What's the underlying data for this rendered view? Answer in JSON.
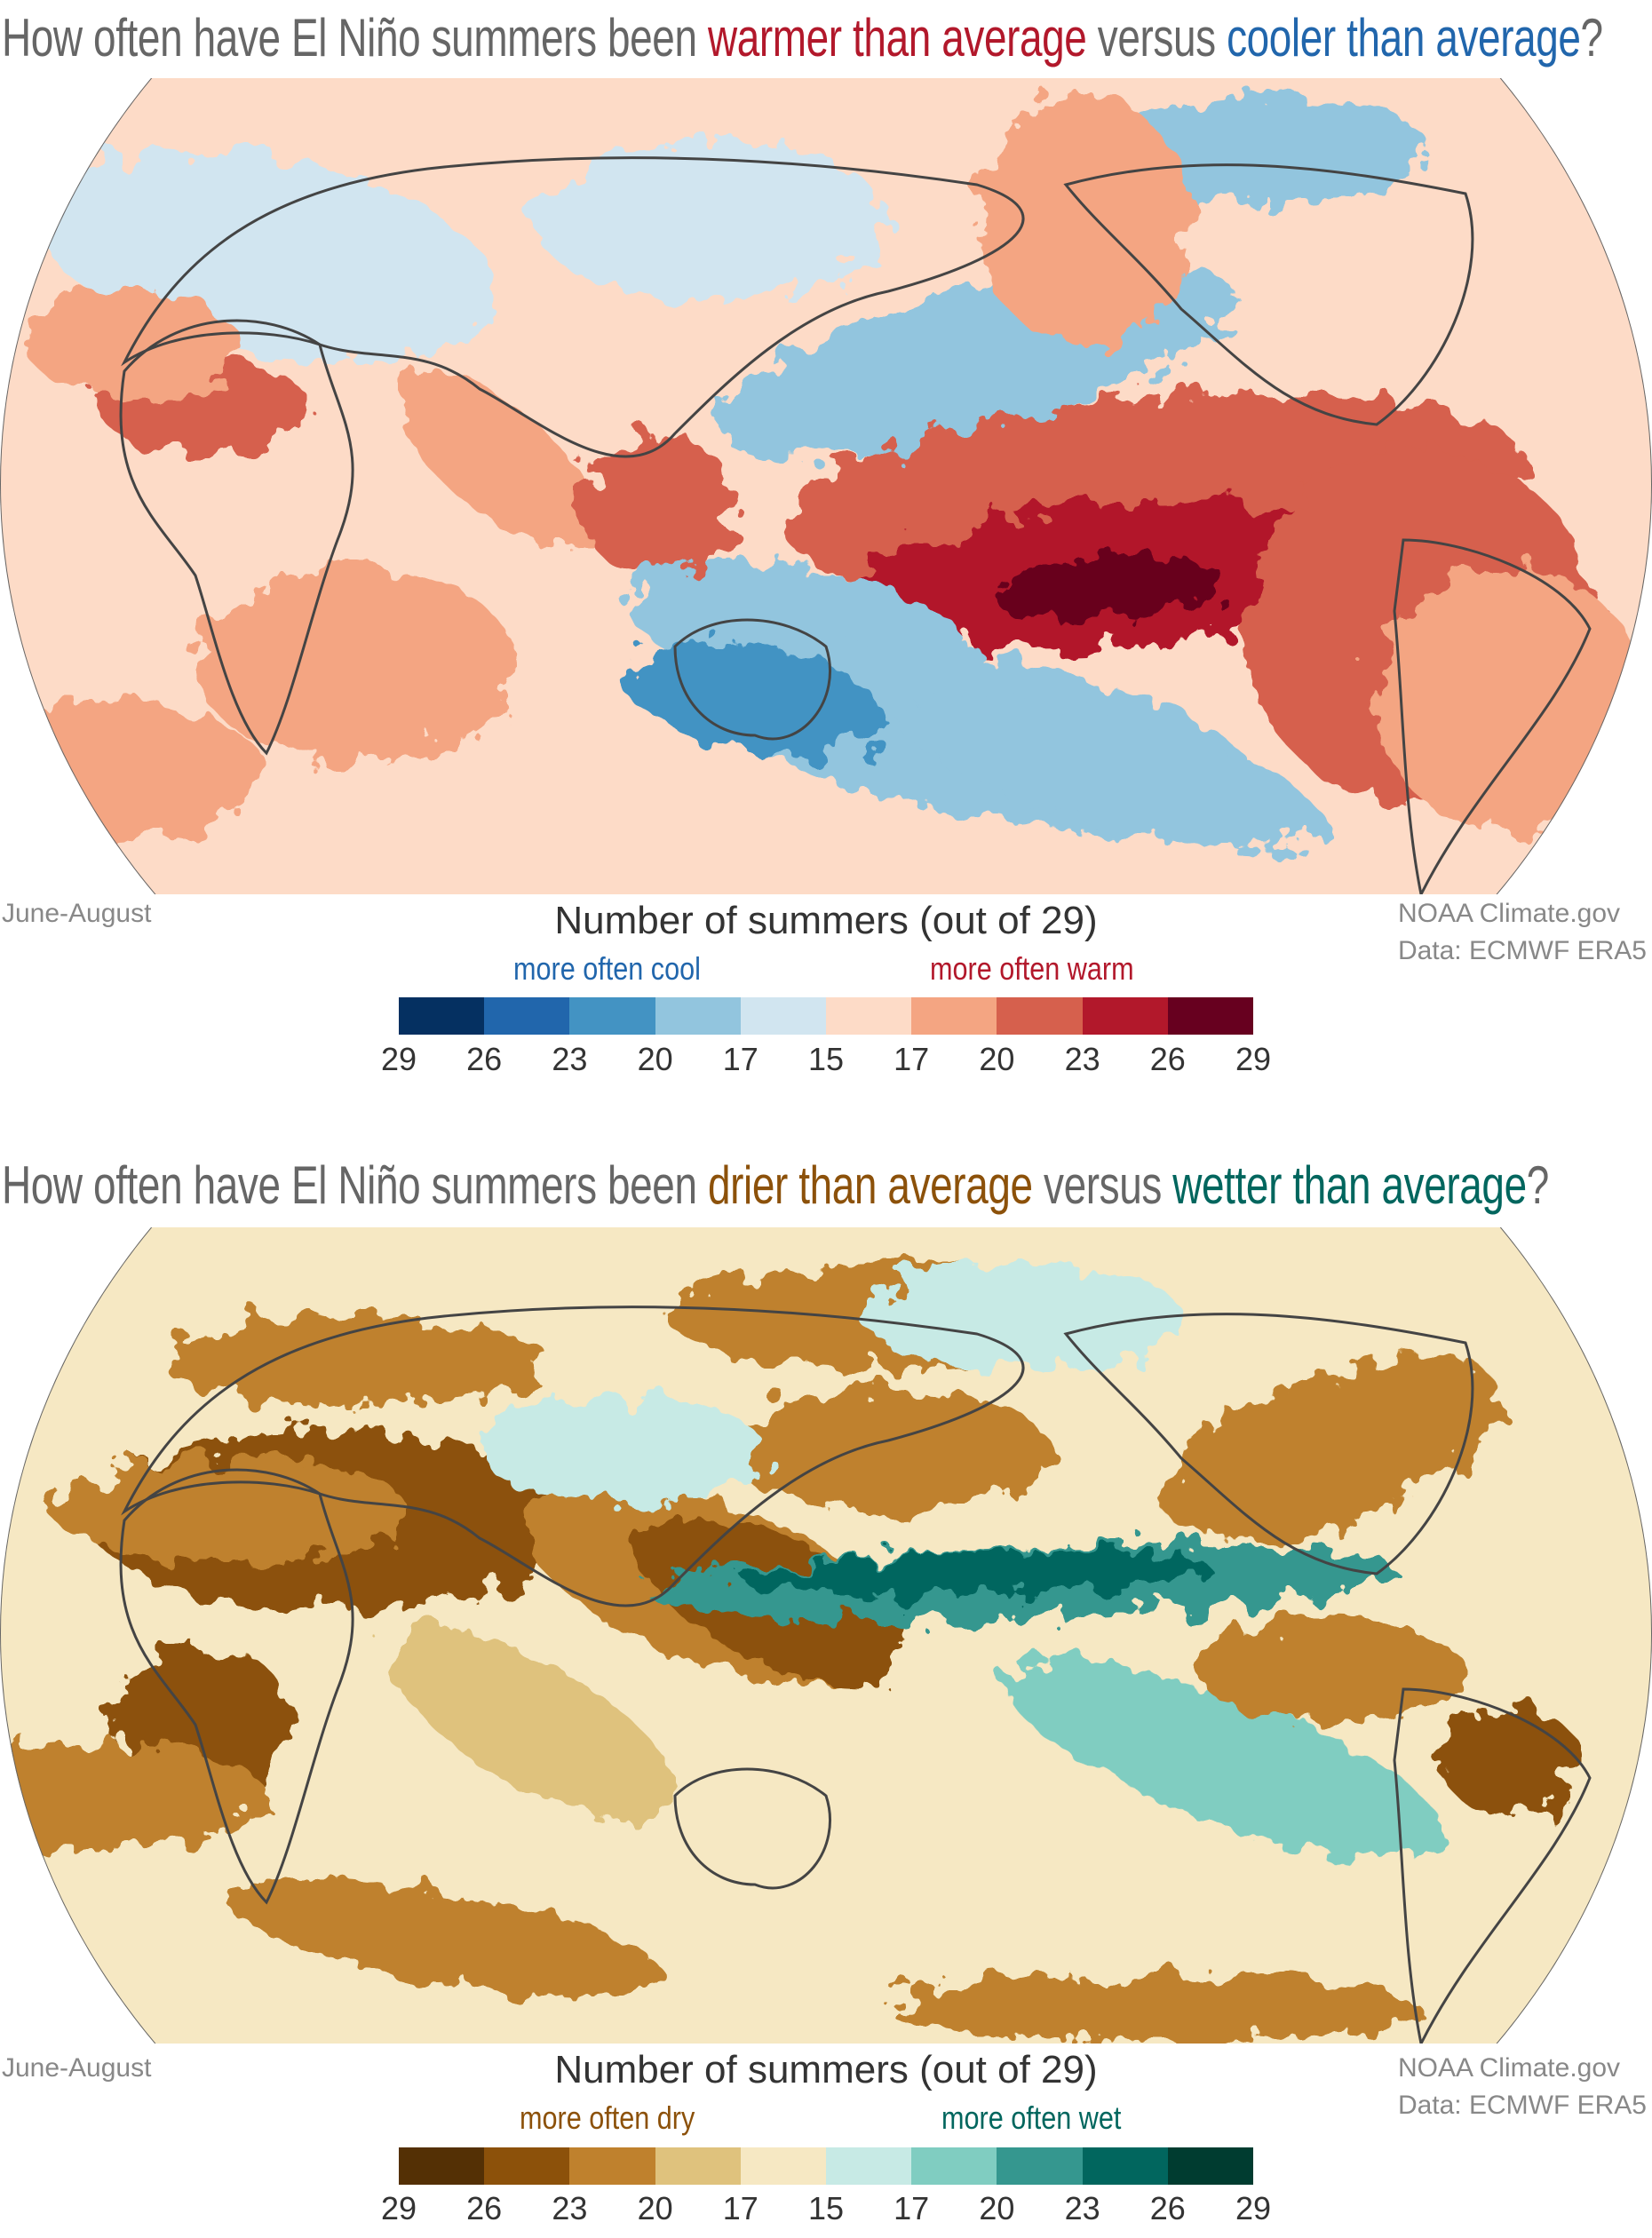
{
  "temperature": {
    "title_parts": [
      "How often have El Niño summers been ",
      "warmer than average",
      " versus ",
      "cooler than average",
      "?"
    ],
    "season": "June-August",
    "credit": [
      "NOAA Climate.gov",
      "Data: ECMWF ERA5"
    ],
    "legend_title": "Number of summers (out of 29)",
    "left_label": "more often cool",
    "right_label": "more often warm",
    "colors": [
      "#053061",
      "#2166ac",
      "#4393c3",
      "#92c5de",
      "#d1e5f0",
      "#fddbc7",
      "#f4a582",
      "#d6604d",
      "#b2182b",
      "#67001f"
    ],
    "ticks": [
      "29",
      "26",
      "23",
      "20",
      "17",
      "15",
      "17",
      "20",
      "23",
      "26",
      "29"
    ]
  },
  "precipitation": {
    "title_parts": [
      "How often have El Niño summers been ",
      "drier than average",
      " versus ",
      "wetter than average",
      "?"
    ],
    "season": "June-August",
    "credit": [
      "NOAA Climate.gov",
      "Data: ECMWF ERA5"
    ],
    "legend_title": "Number of summers (out of 29)",
    "left_label": "more often dry",
    "right_label": "more often wet",
    "colors": [
      "#543005",
      "#8c510a",
      "#bf812d",
      "#dfc27d",
      "#f6e8c3",
      "#c7eae5",
      "#80cdc1",
      "#35978f",
      "#01665e",
      "#003c30"
    ],
    "ticks": [
      "29",
      "26",
      "23",
      "20",
      "17",
      "15",
      "17",
      "20",
      "23",
      "26",
      "29"
    ]
  }
}
